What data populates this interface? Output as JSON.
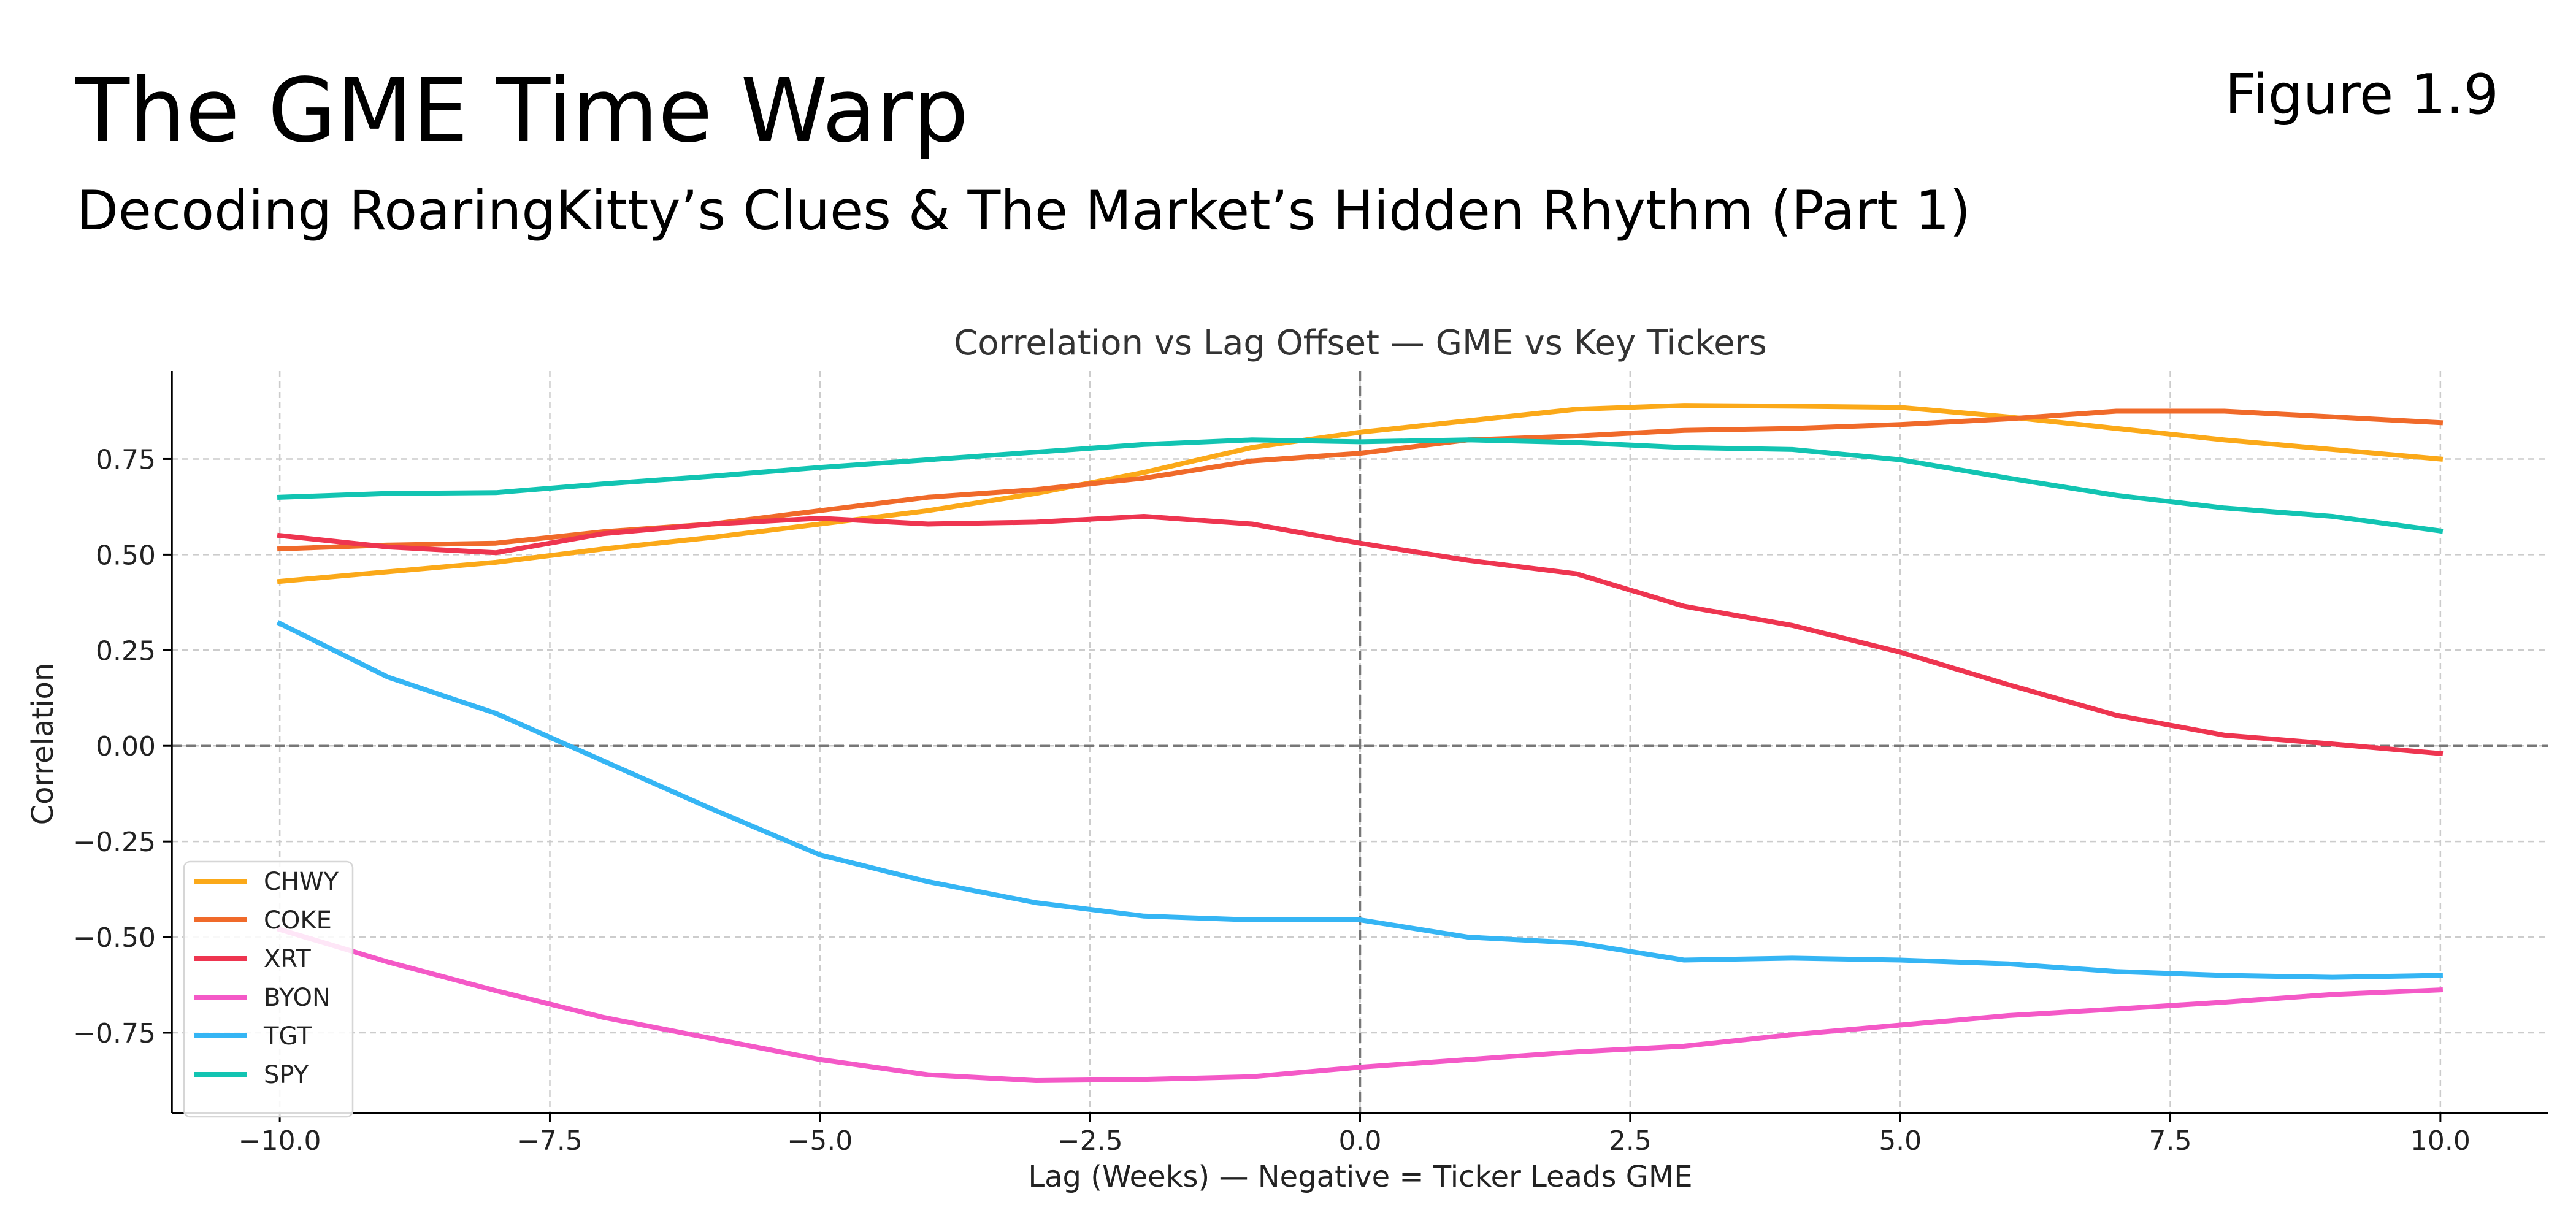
{
  "header": {
    "title": "The GME Time Warp",
    "subtitle": "Decoding RoaringKitty’s Clues & The Market’s Hidden Rhythm (Part 1)",
    "figure_label": "Figure 1.9"
  },
  "chart_data": {
    "type": "line",
    "title": "Correlation vs Lag Offset — GME vs Key Tickers",
    "xlabel": "Lag (Weeks) — Negative = Ticker Leads GME",
    "ylabel": "Correlation",
    "xlim": [
      -11,
      11
    ],
    "ylim": [
      -0.96,
      0.98
    ],
    "x_ticks": [
      -10,
      -7.5,
      -5,
      -2.5,
      0,
      2.5,
      5,
      7.5,
      10
    ],
    "x_tick_labels": [
      "−10.0",
      "−7.5",
      "−5.0",
      "−2.5",
      "0.0",
      "2.5",
      "5.0",
      "7.5",
      "10.0"
    ],
    "y_ticks": [
      -0.75,
      -0.5,
      -0.25,
      0,
      0.25,
      0.5,
      0.75
    ],
    "y_tick_labels": [
      "−0.75",
      "−0.50",
      "−0.25",
      "0.00",
      "0.25",
      "0.50",
      "0.75"
    ],
    "grid": true,
    "legend_position": "lower-left",
    "reference_lines": {
      "x": 0,
      "y": 0
    },
    "x": [
      -10,
      -9,
      -8,
      -7,
      -6,
      -5,
      -4,
      -3,
      -2,
      -1,
      0,
      1,
      2,
      3,
      4,
      5,
      6,
      7,
      8,
      9,
      10
    ],
    "series": [
      {
        "name": "CHWY",
        "color": "#FBA919",
        "values": [
          0.43,
          0.455,
          0.48,
          0.515,
          0.545,
          0.58,
          0.615,
          0.66,
          0.715,
          0.78,
          0.82,
          0.85,
          0.88,
          0.89,
          0.888,
          0.885,
          0.86,
          0.83,
          0.8,
          0.775,
          0.75
        ]
      },
      {
        "name": "COKE",
        "color": "#F06A2A",
        "values": [
          0.515,
          0.525,
          0.53,
          0.56,
          0.58,
          0.615,
          0.65,
          0.67,
          0.7,
          0.745,
          0.765,
          0.8,
          0.81,
          0.825,
          0.83,
          0.84,
          0.855,
          0.875,
          0.875,
          0.86,
          0.845
        ]
      },
      {
        "name": "XRT",
        "color": "#EE3550",
        "values": [
          0.55,
          0.52,
          0.505,
          0.555,
          0.58,
          0.595,
          0.58,
          0.585,
          0.6,
          0.58,
          0.53,
          0.485,
          0.45,
          0.365,
          0.315,
          0.245,
          0.16,
          0.08,
          0.028,
          0.005,
          -0.02
        ]
      },
      {
        "name": "BYON",
        "color": "#F459C7",
        "values": [
          -0.48,
          -0.565,
          -0.64,
          -0.71,
          -0.765,
          -0.82,
          -0.86,
          -0.875,
          -0.872,
          -0.865,
          -0.84,
          -0.82,
          -0.8,
          -0.785,
          -0.755,
          -0.73,
          -0.705,
          -0.688,
          -0.67,
          -0.65,
          -0.638
        ]
      },
      {
        "name": "TGT",
        "color": "#35B5F4",
        "values": [
          0.32,
          0.18,
          0.085,
          -0.04,
          -0.165,
          -0.285,
          -0.355,
          -0.41,
          -0.445,
          -0.455,
          -0.455,
          -0.5,
          -0.515,
          -0.56,
          -0.555,
          -0.56,
          -0.57,
          -0.59,
          -0.6,
          -0.605,
          -0.6
        ]
      },
      {
        "name": "SPY",
        "color": "#12C4B2",
        "values": [
          0.65,
          0.66,
          0.662,
          0.685,
          0.705,
          0.728,
          0.748,
          0.768,
          0.788,
          0.8,
          0.795,
          0.8,
          0.793,
          0.78,
          0.775,
          0.748,
          0.7,
          0.655,
          0.622,
          0.6,
          0.562
        ]
      }
    ]
  }
}
